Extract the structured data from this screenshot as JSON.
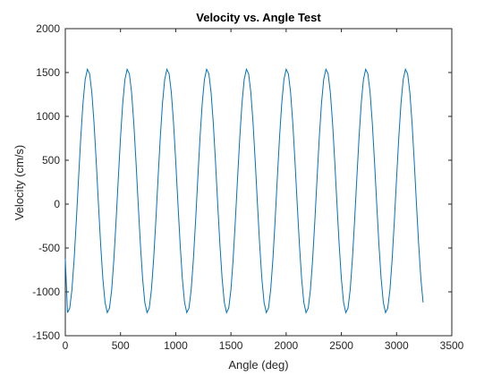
{
  "chart_data": {
    "type": "line",
    "title": "Velocity vs. Angle Test",
    "xlabel": "Angle (deg)",
    "ylabel": "Velocity (cm/s)",
    "x": [
      0,
      20,
      40,
      60,
      80,
      100,
      120,
      140,
      160,
      180,
      200,
      220,
      240,
      260,
      280,
      300,
      320,
      340,
      360,
      380,
      400,
      420,
      440,
      460,
      480,
      500,
      520,
      540,
      560,
      580,
      600,
      620,
      640,
      660,
      680,
      700,
      720,
      740,
      760,
      780,
      800,
      820,
      840,
      860,
      880,
      900,
      920,
      940,
      960,
      980,
      1000,
      1020,
      1040,
      1060,
      1080,
      1100,
      1120,
      1140,
      1160,
      1180,
      1200,
      1220,
      1240,
      1260,
      1280,
      1300,
      1320,
      1340,
      1360,
      1380,
      1400,
      1420,
      1440,
      1460,
      1480,
      1500,
      1520,
      1540,
      1560,
      1580,
      1600,
      1620,
      1640,
      1660,
      1680,
      1700,
      1720,
      1740,
      1760,
      1780,
      1800,
      1820,
      1840,
      1860,
      1880,
      1900,
      1920,
      1940,
      1960,
      1980,
      2000,
      2020,
      2040,
      2060,
      2080,
      2100,
      2120,
      2140,
      2160,
      2180,
      2200,
      2220,
      2240,
      2260,
      2280,
      2300,
      2320,
      2340,
      2360,
      2380,
      2400,
      2420,
      2440,
      2460,
      2480,
      2500,
      2520,
      2540,
      2560,
      2580,
      2600,
      2620,
      2640,
      2660,
      2680,
      2700,
      2720,
      2740,
      2760,
      2780,
      2800,
      2820,
      2840,
      2860,
      2880,
      2900,
      2920,
      2940,
      2960,
      2980,
      3000,
      3020,
      3040,
      3060,
      3080,
      3100,
      3120,
      3140,
      3160,
      3180,
      3200,
      3220,
      3240
    ],
    "series": [
      {
        "name": "Velocity",
        "color": "#0072bd",
        "values": [
          -627,
          -1237,
          -1186,
          -975,
          -627,
          -186,
          296,
          759,
          1149,
          1421,
          1537,
          1486,
          1275,
          927,
          486,
          4,
          -459,
          -849,
          -1121,
          -1237,
          -1186,
          -975,
          -627,
          -186,
          296,
          759,
          1149,
          1421,
          1537,
          1486,
          1275,
          927,
          486,
          4,
          -459,
          -849,
          -1121,
          -1237,
          -1186,
          -975,
          -627,
          -186,
          296,
          759,
          1149,
          1421,
          1537,
          1486,
          1275,
          927,
          486,
          4,
          -459,
          -849,
          -1121,
          -1237,
          -1186,
          -975,
          -627,
          -186,
          296,
          759,
          1149,
          1421,
          1537,
          1486,
          1275,
          927,
          486,
          4,
          -459,
          -849,
          -1121,
          -1237,
          -1186,
          -975,
          -627,
          -186,
          296,
          759,
          1149,
          1421,
          1537,
          1486,
          1275,
          927,
          486,
          4,
          -459,
          -849,
          -1121,
          -1237,
          -1186,
          -975,
          -627,
          -186,
          296,
          759,
          1149,
          1421,
          1537,
          1486,
          1275,
          927,
          486,
          4,
          -459,
          -849,
          -1121,
          -1237,
          -1186,
          -975,
          -627,
          -186,
          296,
          759,
          1149,
          1421,
          1537,
          1486,
          1275,
          927,
          486,
          4,
          -459,
          -849,
          -1121,
          -1237,
          -1186,
          -975,
          -627,
          -186,
          296,
          759,
          1149,
          1421,
          1537,
          1486,
          1275,
          927,
          486,
          4,
          -459,
          -849,
          -1121,
          -1237,
          -1186,
          -975,
          -627,
          -186,
          296,
          759,
          1149,
          1421,
          1537,
          1486,
          1275,
          927,
          486,
          4,
          -459,
          -849,
          -1121
        ]
      }
    ],
    "xlim": [
      0,
      3500
    ],
    "xticks": [
      0,
      500,
      1000,
      1500,
      2000,
      2500,
      3000,
      3500
    ],
    "ylim": [
      -1500,
      2000
    ],
    "yticks": [
      -1500,
      -1000,
      -500,
      0,
      500,
      1000,
      1500,
      2000
    ],
    "grid": false
  }
}
